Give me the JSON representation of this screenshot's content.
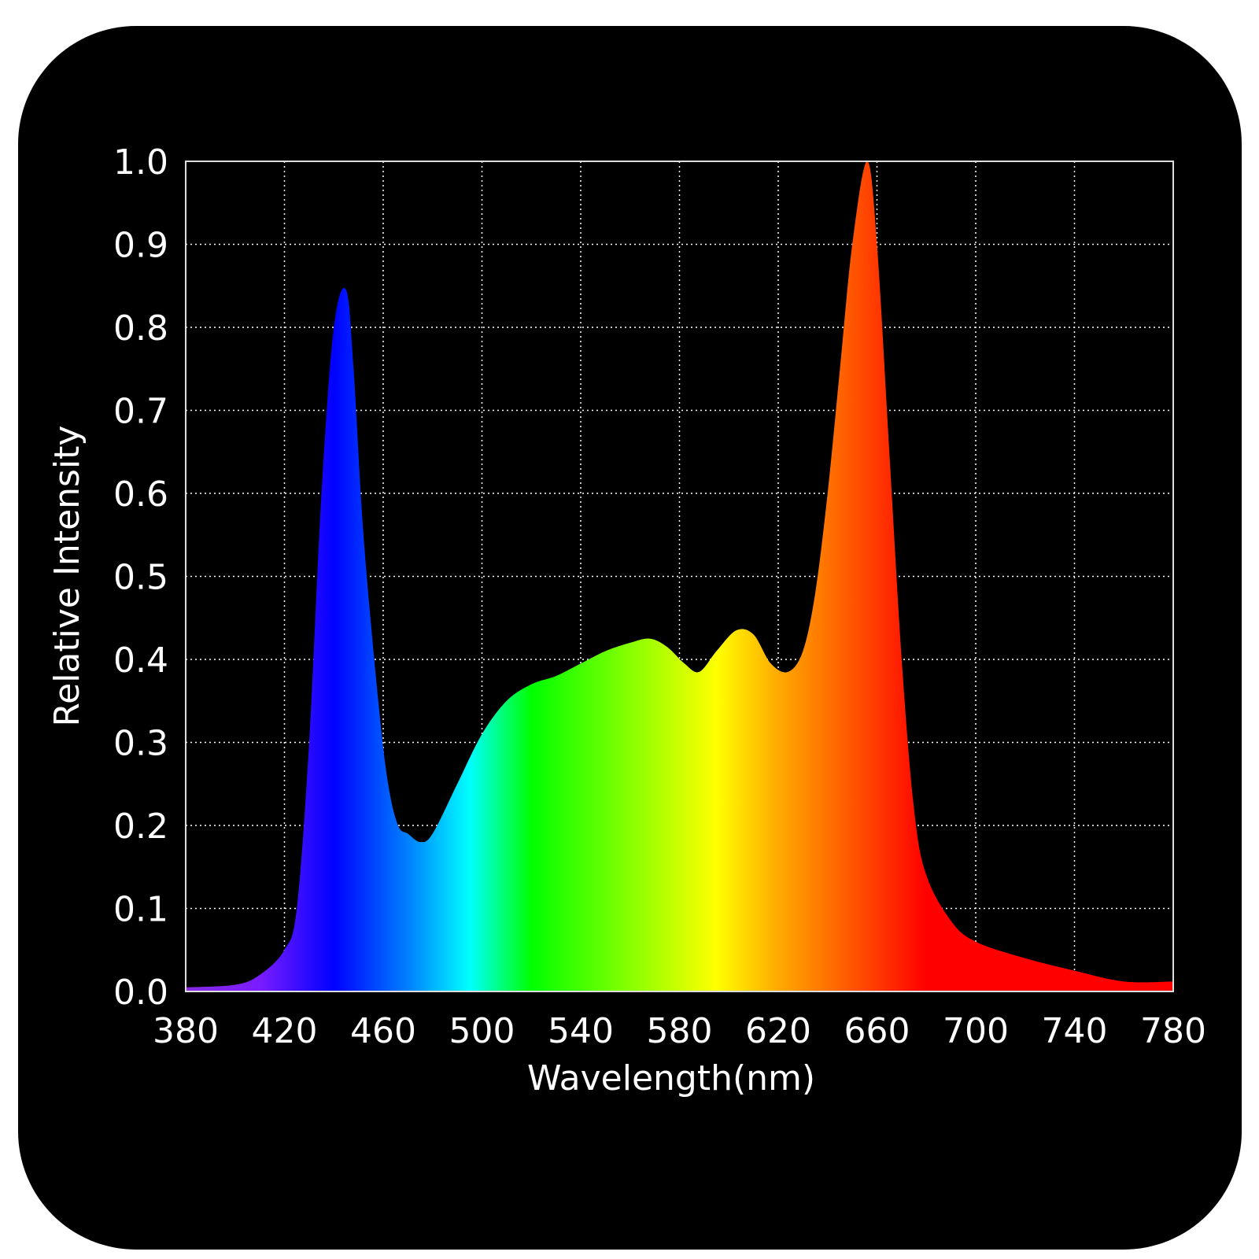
{
  "chart_data": {
    "type": "area",
    "title": "",
    "xlabel": "Wavelength(nm)",
    "ylabel": "Relative Intensity",
    "xlim": [
      380,
      780
    ],
    "ylim": [
      0,
      1.0
    ],
    "grid": true,
    "xticks": [
      "380",
      "420",
      "460",
      "500",
      "540",
      "580",
      "620",
      "660",
      "700",
      "740",
      "780"
    ],
    "yticks": [
      "0.0",
      "0.1",
      "0.2",
      "0.3",
      "0.4",
      "0.5",
      "0.6",
      "0.7",
      "0.8",
      "0.9",
      "1.0"
    ],
    "fill": "visible spectrum gradient by wavelength",
    "colors": {
      "background": "#000000",
      "grid": "#ffffff",
      "text": "#ffffff"
    },
    "gradient": [
      [
        380,
        "#8a2be2"
      ],
      [
        410,
        "#7a1cff"
      ],
      [
        440,
        "#0000ff"
      ],
      [
        470,
        "#0080ff"
      ],
      [
        495,
        "#00ffff"
      ],
      [
        520,
        "#00ff00"
      ],
      [
        560,
        "#88ff00"
      ],
      [
        595,
        "#ffff00"
      ],
      [
        620,
        "#ffaa00"
      ],
      [
        650,
        "#ff5500"
      ],
      [
        680,
        "#ff0000"
      ],
      [
        780,
        "#ff0000"
      ]
    ],
    "x": [
      380,
      400,
      410,
      420,
      425,
      430,
      435,
      440,
      445,
      448,
      452,
      458,
      462,
      466,
      470,
      475,
      480,
      490,
      500,
      510,
      520,
      530,
      540,
      550,
      560,
      568,
      575,
      582,
      588,
      595,
      603,
      610,
      617,
      624,
      630,
      635,
      640,
      645,
      650,
      656,
      660,
      665,
      670,
      675,
      680,
      690,
      700,
      720,
      740,
      760,
      780
    ],
    "y": [
      0.005,
      0.008,
      0.02,
      0.05,
      0.1,
      0.3,
      0.6,
      0.8,
      0.845,
      0.75,
      0.55,
      0.35,
      0.25,
      0.2,
      0.19,
      0.18,
      0.19,
      0.25,
      0.31,
      0.35,
      0.37,
      0.38,
      0.395,
      0.41,
      0.42,
      0.425,
      0.415,
      0.395,
      0.385,
      0.41,
      0.435,
      0.43,
      0.395,
      0.385,
      0.41,
      0.48,
      0.6,
      0.75,
      0.9,
      1.0,
      0.9,
      0.65,
      0.4,
      0.22,
      0.14,
      0.085,
      0.06,
      0.04,
      0.025,
      0.012,
      0.012
    ]
  }
}
